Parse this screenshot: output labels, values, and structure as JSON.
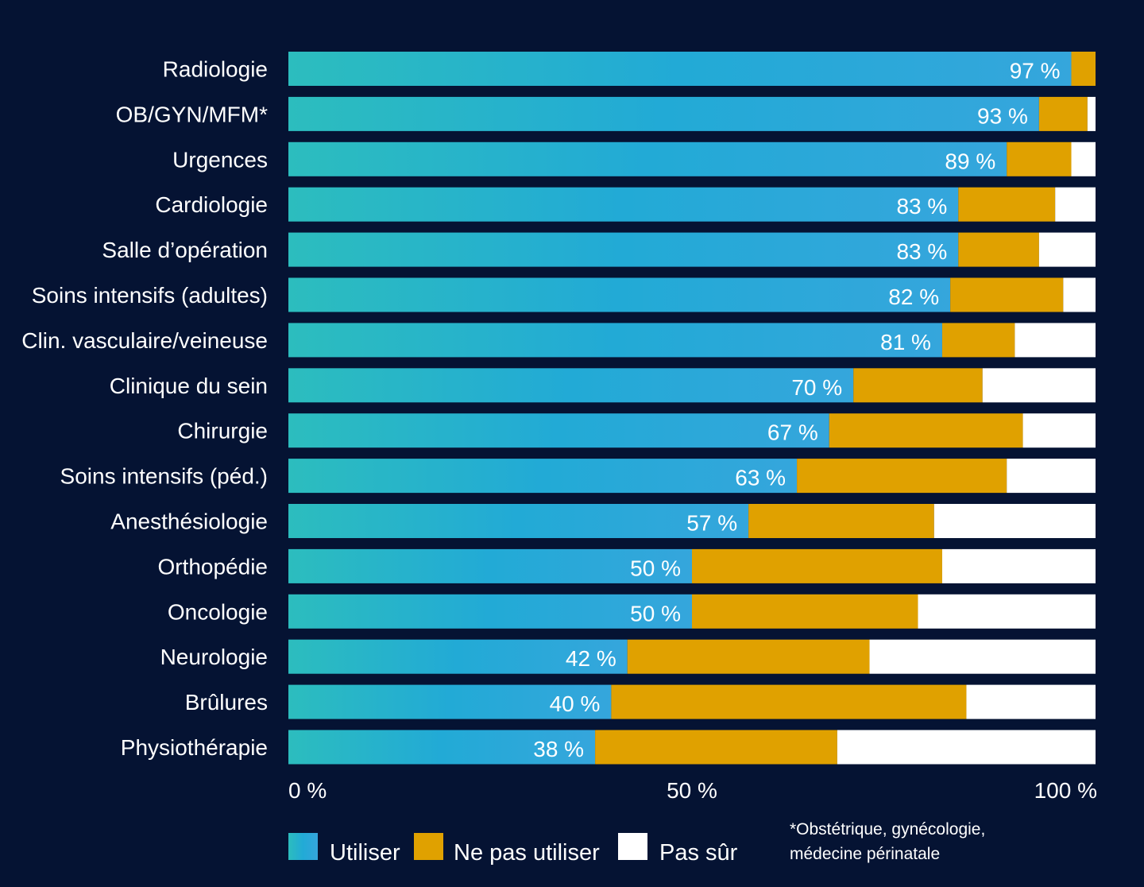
{
  "chart_data": {
    "type": "bar",
    "orientation": "horizontal",
    "stacked": true,
    "categories": [
      "Radiologie",
      "OB/GYN/MFM*",
      "Urgences",
      "Cardiologie",
      "Salle d’opération",
      "Soins intensifs (adultes)",
      "Clin. vasculaire/veineuse",
      "Clinique du sein",
      "Chirurgie",
      "Soins intensifs (péd.)",
      "Anesthésiologie",
      "Orthopédie",
      "Oncologie",
      "Neurologie",
      "Brûlures",
      "Physiothérapie"
    ],
    "series": [
      {
        "name": "Utiliser",
        "color": "#29B3D6",
        "values": [
          97,
          93,
          89,
          83,
          83,
          82,
          81,
          70,
          67,
          63,
          57,
          50,
          50,
          42,
          40,
          38
        ]
      },
      {
        "name": "Ne pas utiliser",
        "color": "#E0A100",
        "values": [
          3,
          6,
          8,
          12,
          10,
          14,
          9,
          16,
          24,
          26,
          23,
          31,
          28,
          30,
          44,
          30
        ]
      },
      {
        "name": "Pas sûr",
        "color": "#FFFFFF",
        "values": [
          0,
          1,
          3,
          5,
          7,
          4,
          10,
          14,
          9,
          11,
          20,
          19,
          22,
          28,
          16,
          32
        ]
      }
    ],
    "data_labels": [
      "97 %",
      "93 %",
      "89 %",
      "83 %",
      "83 %",
      "82 %",
      "81 %",
      "70 %",
      "67 %",
      "63 %",
      "57 %",
      "50 %",
      "50 %",
      "42 %",
      "40 %",
      "38 %"
    ],
    "xlim": [
      0,
      100
    ],
    "x_ticks": [
      {
        "value": 0,
        "label": "0 %"
      },
      {
        "value": 50,
        "label": "50 %"
      },
      {
        "value": 100,
        "label": "100 %"
      }
    ],
    "grid": false,
    "legend_position": "bottom",
    "footnote_lines": [
      "*Obstétrique, gynécologie,",
      "médecine périnatale"
    ]
  }
}
